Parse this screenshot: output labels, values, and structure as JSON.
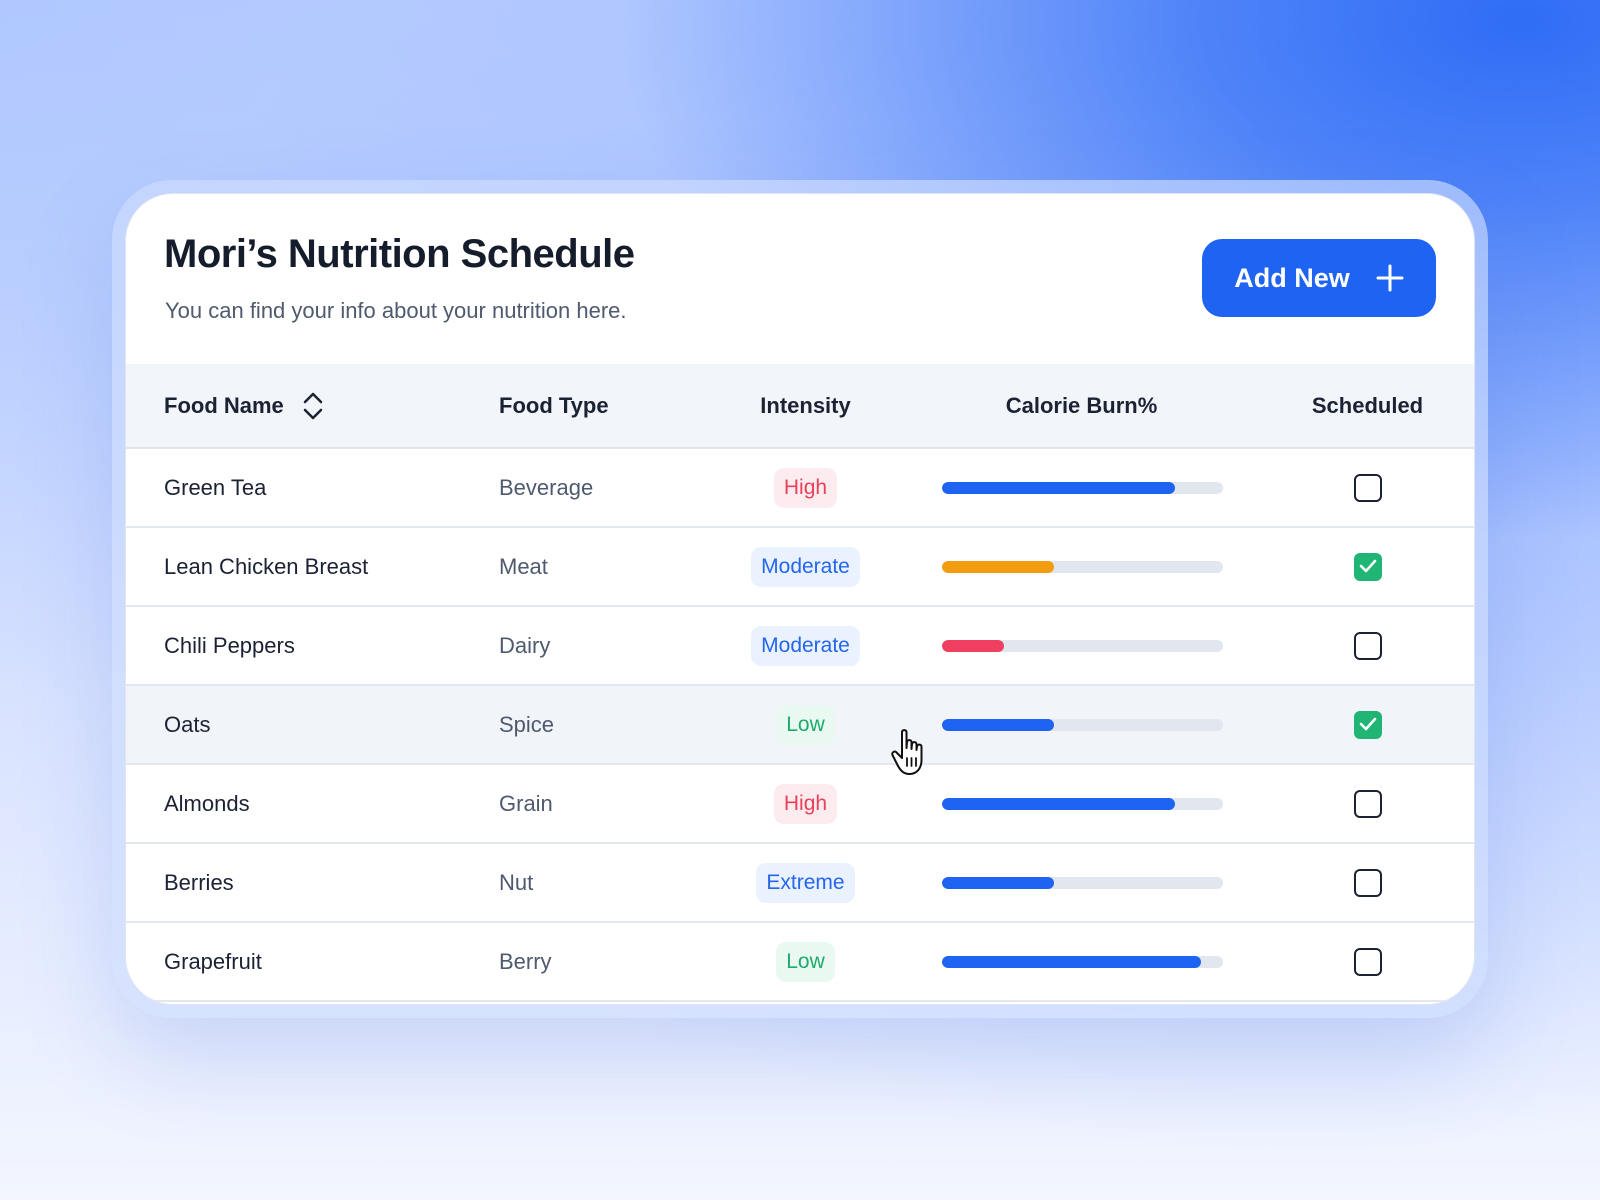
{
  "header": {
    "title": "Mori’s Nutrition Schedule",
    "subtitle": "You can find your info about your nutrition here.",
    "add_button_label": "Add New"
  },
  "table": {
    "columns": {
      "food_name": "Food Name",
      "food_type": "Food Type",
      "intensity": "Intensity",
      "calorie_burn": "Calorie Burn%",
      "scheduled": "Scheduled"
    },
    "rows": [
      {
        "name": "Green Tea",
        "type": "Beverage",
        "intensity": "High",
        "intensity_level": "high",
        "calorie_burn": 0.83,
        "bar_color": "#1f63f2",
        "scheduled": false
      },
      {
        "name": "Lean Chicken Breast",
        "type": "Meat",
        "intensity": "Moderate",
        "intensity_level": "moderate",
        "calorie_burn": 0.4,
        "bar_color": "#f29c10",
        "scheduled": true
      },
      {
        "name": "Chili Peppers",
        "type": "Dairy",
        "intensity": "Moderate",
        "intensity_level": "moderate",
        "calorie_burn": 0.22,
        "bar_color": "#ef4060",
        "scheduled": false
      },
      {
        "name": "Oats",
        "type": "Spice",
        "intensity": "Low",
        "intensity_level": "low",
        "calorie_burn": 0.4,
        "bar_color": "#1f63f2",
        "scheduled": true
      },
      {
        "name": "Almonds",
        "type": "Grain",
        "intensity": "High",
        "intensity_level": "high",
        "calorie_burn": 0.83,
        "bar_color": "#1f63f2",
        "scheduled": false
      },
      {
        "name": "Berries",
        "type": "Nut",
        "intensity": "Extreme",
        "intensity_level": "extreme",
        "calorie_burn": 0.4,
        "bar_color": "#1f63f2",
        "scheduled": false
      },
      {
        "name": "Grapefruit",
        "type": "Berry",
        "intensity": "Low",
        "intensity_level": "low",
        "calorie_burn": 0.92,
        "bar_color": "#1f63f2",
        "scheduled": false
      }
    ],
    "hovered_row": 3
  },
  "colors": {
    "accent": "#1f63f2",
    "checked": "#20b574"
  },
  "icons": {
    "add": "plus-icon",
    "sort": "sort-icon",
    "check": "check-icon",
    "cursor": "hand-pointer-icon"
  }
}
